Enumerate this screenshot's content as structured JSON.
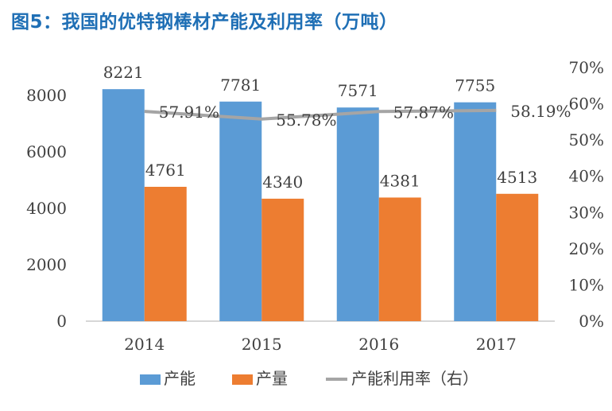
{
  "page": {
    "title": "图5：我国的优特钢棒材产能及利用率（万吨）"
  },
  "chart_data": {
    "type": "bar",
    "title": "图5：我国的优特钢棒材产能及利用率（万吨）",
    "categories": [
      "2014",
      "2015",
      "2016",
      "2017"
    ],
    "series": [
      {
        "name": "产能",
        "type": "bar",
        "axis": "left",
        "color": "#5b9bd5",
        "values": [
          8221,
          7781,
          7571,
          7755
        ],
        "labels": [
          "8221",
          "7781",
          "7571",
          "7755"
        ]
      },
      {
        "name": "产量",
        "type": "bar",
        "axis": "left",
        "color": "#ed7d31",
        "values": [
          4761,
          4340,
          4381,
          4513
        ],
        "labels": [
          "4761",
          "4340",
          "4381",
          "4513"
        ]
      },
      {
        "name": "产能利用率（右）",
        "type": "line",
        "axis": "right",
        "color": "#a5a5a5",
        "values": [
          57.91,
          55.78,
          57.87,
          58.19
        ],
        "labels": [
          "57.91%",
          "55.78%",
          "57.87%",
          "58.19%"
        ]
      }
    ],
    "y_left": {
      "min": 0,
      "max": 9000,
      "ticks": [
        0,
        2000,
        4000,
        6000,
        8000
      ],
      "tick_labels": [
        "0",
        "2000",
        "4000",
        "6000",
        "8000"
      ]
    },
    "y_right": {
      "min": 0,
      "max": 70,
      "ticks": [
        0,
        10,
        20,
        30,
        40,
        50,
        60,
        70
      ],
      "tick_labels": [
        "0%",
        "10%",
        "20%",
        "30%",
        "40%",
        "50%",
        "60%",
        "70%"
      ]
    },
    "grid": false,
    "legend_position": "bottom"
  }
}
